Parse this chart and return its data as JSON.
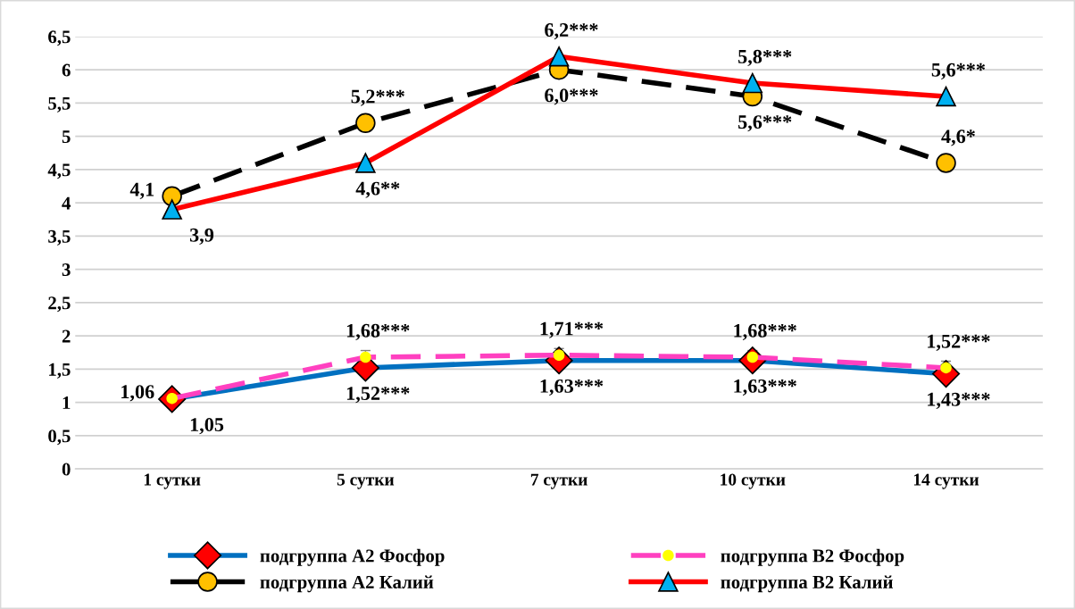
{
  "chart_data": {
    "type": "line",
    "categories": [
      "1 сутки",
      "5 сутки",
      "7 сутки",
      "10 сутки",
      "14 сутки"
    ],
    "ylim": [
      0,
      6.5
    ],
    "yticks": [
      0,
      {
        "value": 0.5,
        "label": "0,5"
      },
      1,
      {
        "value": 1.5,
        "label": "1,5"
      },
      2,
      {
        "value": 2.5,
        "label": "2,5"
      },
      3,
      {
        "value": 3.5,
        "label": "3,5"
      },
      4,
      {
        "value": 4.5,
        "label": "4,5"
      },
      5,
      {
        "value": 5.5,
        "label": "5,5"
      },
      6,
      {
        "value": 6.5,
        "label": "6,5"
      }
    ],
    "grid": "y",
    "legend": "bottom",
    "series": [
      {
        "name": "подгруппа А2 Фосфор",
        "color": "#0070c0",
        "marker": "diamond",
        "line_style": "solid",
        "values": [
          1.05,
          1.52,
          1.63,
          1.63,
          1.43
        ],
        "value_labels": [
          "1,05",
          "1,52***",
          "1,63***",
          "1,63***",
          "1,43***"
        ]
      },
      {
        "name": "подгруппа В2 Фосфор",
        "color": "#ff40c0",
        "marker": "circle",
        "line_style": "dashed",
        "values": [
          1.06,
          1.68,
          1.71,
          1.68,
          1.52
        ],
        "errors": [
          null,
          0.1,
          0.1,
          0.1,
          0.1
        ],
        "value_labels": [
          "1,06",
          "1,68***",
          "1,71***",
          "1,68***",
          "1,52***"
        ]
      },
      {
        "name": "подгруппа А2 Калий",
        "color": "#000000",
        "marker": "circle",
        "line_style": "dashed",
        "values": [
          4.1,
          5.2,
          6.0,
          5.6,
          4.6
        ],
        "value_labels": [
          "4,1",
          "5,2***",
          "6,0***",
          "5,6***",
          "4,6*"
        ]
      },
      {
        "name": "подгруппа В2 Калий",
        "color": "#ff0000",
        "marker": "triangle",
        "line_style": "solid",
        "values": [
          3.9,
          4.6,
          6.2,
          5.8,
          5.6
        ],
        "value_labels": [
          "3,9",
          "4,6**",
          "6,2***",
          "5,8***",
          "5,6***"
        ]
      }
    ]
  }
}
